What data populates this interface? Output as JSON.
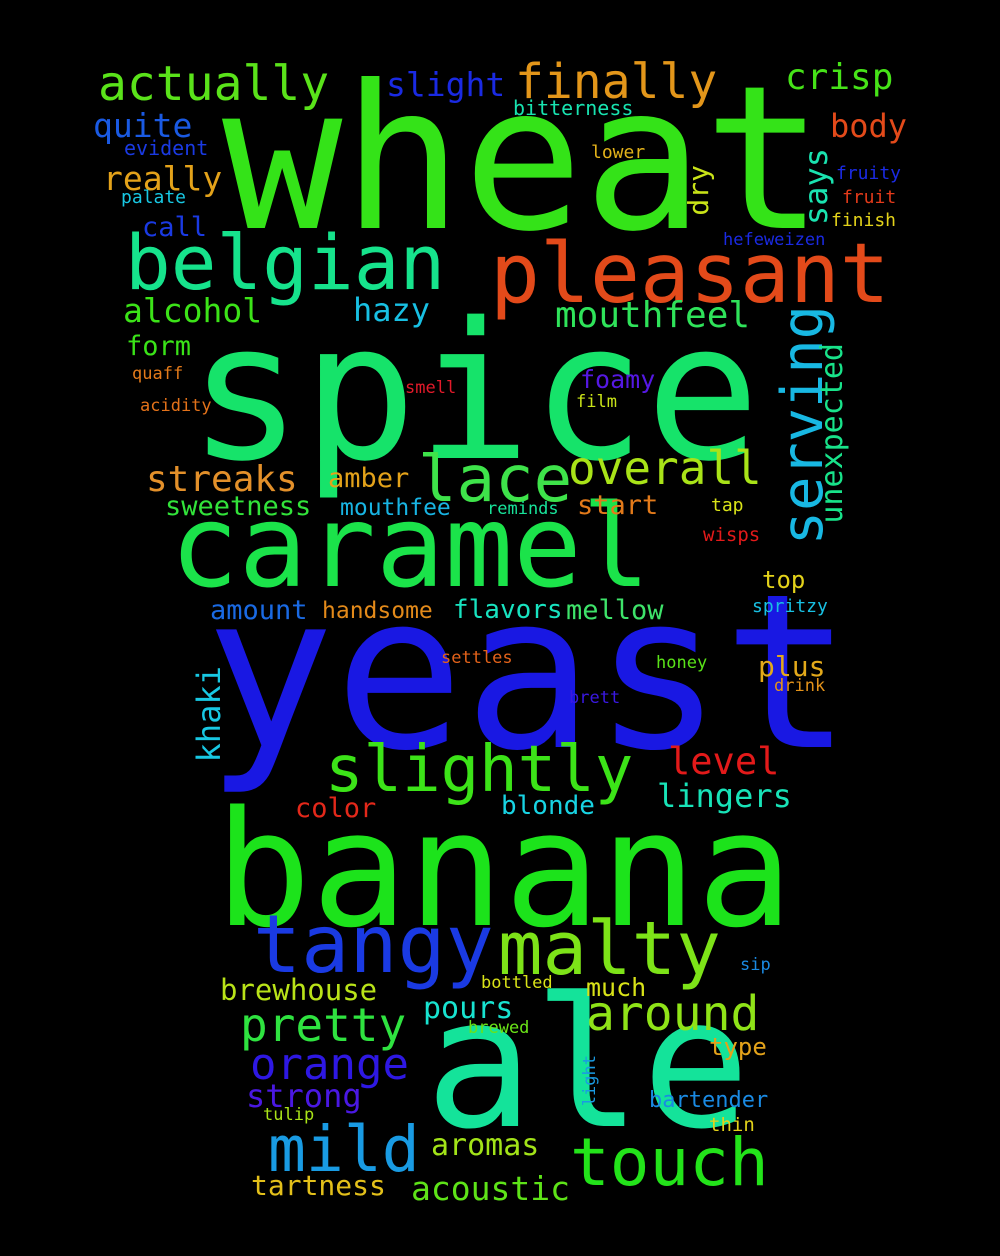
{
  "background_color": "#000000",
  "words": [
    {
      "text": "wheat",
      "color": "#34e318"
    },
    {
      "text": "spice",
      "color": "#16e36a"
    },
    {
      "text": "yeast",
      "color": "#1918e3"
    },
    {
      "text": "banana",
      "color": "#1ce31b"
    },
    {
      "text": "ale",
      "color": "#14e39a"
    },
    {
      "text": "caramel",
      "color": "#1be34a"
    },
    {
      "text": "pleasant",
      "color": "#e34a1a"
    },
    {
      "text": "belgian",
      "color": "#16e38c"
    },
    {
      "text": "tangy",
      "color": "#1a3ae3"
    },
    {
      "text": "malty",
      "color": "#7de318"
    },
    {
      "text": "touch",
      "color": "#23e31a"
    },
    {
      "text": "slightly",
      "color": "#3ce318"
    },
    {
      "text": "lace",
      "color": "#3ee34a"
    },
    {
      "text": "serving",
      "color": "#18b8e3"
    },
    {
      "text": "mild",
      "color": "#199be3"
    },
    {
      "text": "actually",
      "color": "#5ae31a"
    },
    {
      "text": "finally",
      "color": "#e3961a"
    },
    {
      "text": "overall",
      "color": "#a9e318"
    },
    {
      "text": "pretty",
      "color": "#2fe340"
    },
    {
      "text": "around",
      "color": "#8fe318"
    },
    {
      "text": "orange",
      "color": "#2e18e3"
    },
    {
      "text": "crisp",
      "color": "#46e318"
    },
    {
      "text": "mouthfeel",
      "color": "#2fe35a"
    },
    {
      "text": "streaks",
      "color": "#e3902a"
    },
    {
      "text": "slight",
      "color": "#1a2ae3"
    },
    {
      "text": "body",
      "color": "#e34a1a"
    },
    {
      "text": "quite",
      "color": "#1a5ae3"
    },
    {
      "text": "really",
      "color": "#e3a21a"
    },
    {
      "text": "alcohol",
      "color": "#3ce318"
    },
    {
      "text": "hazy",
      "color": "#18c0e3"
    },
    {
      "text": "says",
      "color": "#1ae3b0"
    },
    {
      "text": "unexpected",
      "color": "#18e38a"
    },
    {
      "text": "level",
      "color": "#e31a1a"
    },
    {
      "text": "lingers",
      "color": "#18e3b8"
    },
    {
      "text": "strong",
      "color": "#4a18e3"
    },
    {
      "text": "aromas",
      "color": "#a2e318"
    },
    {
      "text": "acoustic",
      "color": "#5ee318"
    },
    {
      "text": "tartness",
      "color": "#e3c01a"
    },
    {
      "text": "brewhouse",
      "color": "#b9e318"
    },
    {
      "text": "pours",
      "color": "#18e3d0"
    },
    {
      "text": "amber",
      "color": "#e3a21a"
    },
    {
      "text": "sweetness",
      "color": "#32e33a"
    },
    {
      "text": "start",
      "color": "#e37a1a"
    },
    {
      "text": "foamy",
      "color": "#5518e3"
    },
    {
      "text": "khaki",
      "color": "#18c8e3"
    },
    {
      "text": "plus",
      "color": "#e3a91a"
    },
    {
      "text": "blonde",
      "color": "#18d3e3"
    },
    {
      "text": "color",
      "color": "#e3281a"
    },
    {
      "text": "amount",
      "color": "#1a6ae3"
    },
    {
      "text": "handsome",
      "color": "#e38a1a"
    },
    {
      "text": "flavors",
      "color": "#18e3c0"
    },
    {
      "text": "mellow",
      "color": "#3ee36a"
    },
    {
      "text": "mouthfee",
      "color": "#18b4e3"
    },
    {
      "text": "call",
      "color": "#1a3ae3"
    },
    {
      "text": "form",
      "color": "#3ae318"
    },
    {
      "text": "dry",
      "color": "#c9e318"
    },
    {
      "text": "top",
      "color": "#e3d21a"
    },
    {
      "text": "much",
      "color": "#d9e318"
    },
    {
      "text": "type",
      "color": "#e3a21a"
    },
    {
      "text": "bartender",
      "color": "#1a8ae3"
    },
    {
      "text": "bitterness",
      "color": "#18e3b0"
    },
    {
      "text": "evident",
      "color": "#1a3ae3"
    },
    {
      "text": "lower",
      "color": "#e3b21a"
    },
    {
      "text": "palate",
      "color": "#18c8e3"
    },
    {
      "text": "fruity",
      "color": "#1a2ae3"
    },
    {
      "text": "fruit",
      "color": "#e33a1a"
    },
    {
      "text": "finish",
      "color": "#e3d21a"
    },
    {
      "text": "hefeweizen",
      "color": "#1a2ae3"
    },
    {
      "text": "quaff",
      "color": "#e37a1a"
    },
    {
      "text": "acidity",
      "color": "#e3721a"
    },
    {
      "text": "smell",
      "color": "#e31a2a"
    },
    {
      "text": "film",
      "color": "#c9e318"
    },
    {
      "text": "reminds",
      "color": "#18e39a"
    },
    {
      "text": "tap",
      "color": "#d9e318"
    },
    {
      "text": "wisps",
      "color": "#e31a1a"
    },
    {
      "text": "spritzy",
      "color": "#18c0e3"
    },
    {
      "text": "settles",
      "color": "#e3621a"
    },
    {
      "text": "honey",
      "color": "#5ae318"
    },
    {
      "text": "drink",
      "color": "#e3921a"
    },
    {
      "text": "brett",
      "color": "#3a18e3"
    },
    {
      "text": "sip",
      "color": "#1a8ae3"
    },
    {
      "text": "bottled",
      "color": "#d9e318"
    },
    {
      "text": "brewed",
      "color": "#6ae318"
    },
    {
      "text": "light",
      "color": "#1a9ae3"
    },
    {
      "text": "tulip",
      "color": "#a9e318"
    },
    {
      "text": "thin",
      "color": "#e3d21a"
    }
  ]
}
